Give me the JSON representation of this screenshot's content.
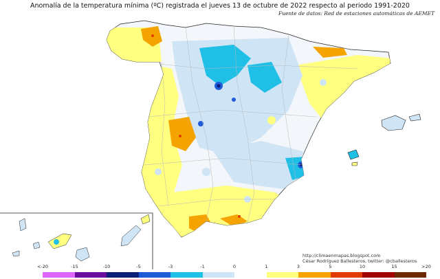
{
  "header": {
    "title": "Anomalía de la temperatura mínima (ºC) registrada el jueves 13 de octubre de 2022 respecto al periodo 1991-2020",
    "source": "Fuente de datos: Red de estaciones automáticas de AEMET"
  },
  "credits": {
    "url": "http://climaenmapas.blogspot.com",
    "author": "César Rodríguez Ballesteros, twitter: @cballesteros"
  },
  "legend": {
    "labels": [
      "<-20",
      "-15",
      "-10",
      "-5",
      "-3",
      "-1",
      "0",
      "1",
      "3",
      "5",
      "10",
      "15",
      ">20"
    ],
    "colors": [
      "#e066ff",
      "#b026c8",
      "#6a0d9a",
      "#0a1e7a",
      "#1f5bd6",
      "#1fbfe6",
      "#cfe4f5",
      "#ffffff",
      "#ffff80",
      "#f5a300",
      "#e03c00",
      "#a00000",
      "#6b2a00"
    ]
  },
  "colors": {
    "background": "#ffffff",
    "land_base": "#f3f6fa",
    "coastline": "#222222",
    "province_border": "#b8b8b8"
  }
}
